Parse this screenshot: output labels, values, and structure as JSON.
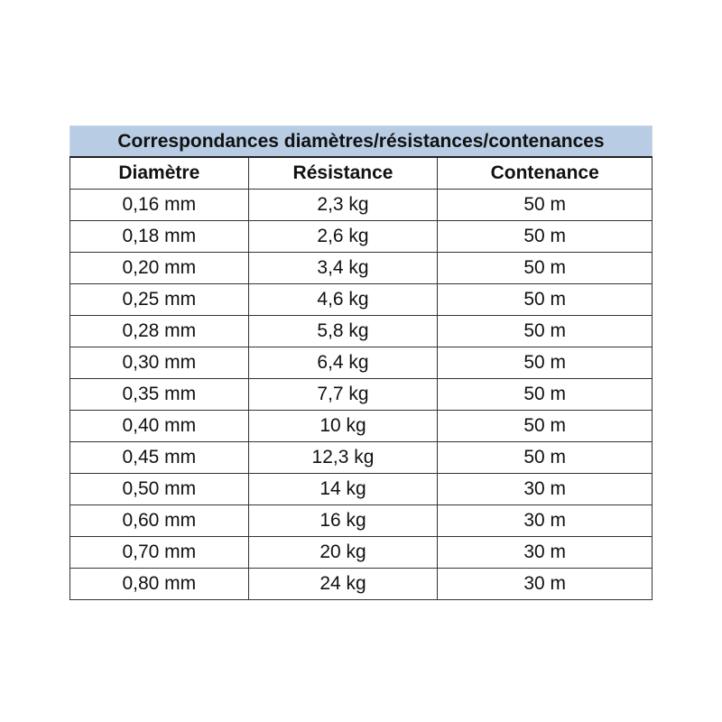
{
  "table": {
    "title": "Correspondances diamètres/résistances/contenances",
    "headers": [
      "Diamètre",
      "Résistance",
      "Contenance"
    ],
    "rows": [
      [
        "0,16 mm",
        "2,3 kg",
        "50 m"
      ],
      [
        "0,18 mm",
        "2,6 kg",
        "50 m"
      ],
      [
        "0,20 mm",
        "3,4 kg",
        "50 m"
      ],
      [
        "0,25 mm",
        "4,6 kg",
        "50 m"
      ],
      [
        "0,28 mm",
        "5,8 kg",
        "50 m"
      ],
      [
        "0,30 mm",
        "6,4 kg",
        "50 m"
      ],
      [
        "0,35 mm",
        "7,7 kg",
        "50 m"
      ],
      [
        "0,40 mm",
        "10 kg",
        "50 m"
      ],
      [
        "0,45 mm",
        "12,3 kg",
        "50 m"
      ],
      [
        "0,50 mm",
        "14 kg",
        "30 m"
      ],
      [
        "0,60 mm",
        "16 kg",
        "30 m"
      ],
      [
        "0,70 mm",
        "20 kg",
        "30 m"
      ],
      [
        "0,80 mm",
        "24 kg",
        "30 m"
      ]
    ],
    "title_bg": "#b8cce4"
  }
}
